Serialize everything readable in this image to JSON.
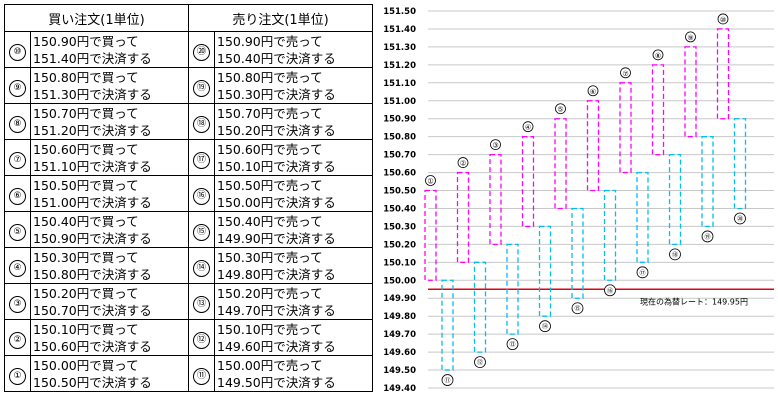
{
  "table": {
    "buy_header": "買い注文(1単位)",
    "sell_header": "売り注文(1単位)",
    "rows": [
      {
        "buy_mark": "⑩",
        "buy_line1": "150.90円で買って",
        "buy_line2": "151.40円で決済する",
        "sell_mark": "⑳",
        "sell_line1": "150.90円で売って",
        "sell_line2": "150.40円で決済する"
      },
      {
        "buy_mark": "⑨",
        "buy_line1": "150.80円で買って",
        "buy_line2": "151.30円で決済する",
        "sell_mark": "⑲",
        "sell_line1": "150.80円で売って",
        "sell_line2": "150.30円で決済する"
      },
      {
        "buy_mark": "⑧",
        "buy_line1": "150.70円で買って",
        "buy_line2": "151.20円で決済する",
        "sell_mark": "⑱",
        "sell_line1": "150.70円で売って",
        "sell_line2": "150.20円で決済する"
      },
      {
        "buy_mark": "⑦",
        "buy_line1": "150.60円で買って",
        "buy_line2": "151.10円で決済する",
        "sell_mark": "⑰",
        "sell_line1": "150.60円で売って",
        "sell_line2": "150.10円で決済する"
      },
      {
        "buy_mark": "⑥",
        "buy_line1": "150.50円で買って",
        "buy_line2": "151.00円で決済する",
        "sell_mark": "⑯",
        "sell_line1": "150.50円で売って",
        "sell_line2": "150.00円で決済する"
      },
      {
        "buy_mark": "⑤",
        "buy_line1": "150.40円で買って",
        "buy_line2": "150.90円で決済する",
        "sell_mark": "⑮",
        "sell_line1": "150.40円で売って",
        "sell_line2": "149.90円で決済する"
      },
      {
        "buy_mark": "④",
        "buy_line1": "150.30円で買って",
        "buy_line2": "150.80円で決済する",
        "sell_mark": "⑭",
        "sell_line1": "150.30円で売って",
        "sell_line2": "149.80円で決済する"
      },
      {
        "buy_mark": "③",
        "buy_line1": "150.20円で買って",
        "buy_line2": "150.70円で決済する",
        "sell_mark": "⑬",
        "sell_line1": "150.20円で売って",
        "sell_line2": "149.70円で決済する"
      },
      {
        "buy_mark": "②",
        "buy_line1": "150.10円で買って",
        "buy_line2": "150.60円で決済する",
        "sell_mark": "⑫",
        "sell_line1": "150.10円で売って",
        "sell_line2": "149.60円で決済する"
      },
      {
        "buy_mark": "①",
        "buy_line1": "150.00円で買って",
        "buy_line2": "150.50円で決済する",
        "sell_mark": "⑪",
        "sell_line1": "150.00円で売って",
        "sell_line2": "149.50円で決済する"
      }
    ]
  },
  "chart_data": {
    "type": "floating-bar",
    "ylim": [
      149.4,
      151.5
    ],
    "y_ticks": [
      "151.50",
      "151.40",
      "151.30",
      "151.20",
      "151.10",
      "151.00",
      "150.90",
      "150.80",
      "150.70",
      "150.60",
      "150.50",
      "150.40",
      "150.30",
      "150.20",
      "150.10",
      "150.00",
      "149.90",
      "149.80",
      "149.70",
      "149.60",
      "149.50",
      "149.40"
    ],
    "grid": true,
    "buy_orders": [
      {
        "label": "①",
        "entry": 150.0,
        "exit": 150.5
      },
      {
        "label": "②",
        "entry": 150.1,
        "exit": 150.6
      },
      {
        "label": "③",
        "entry": 150.2,
        "exit": 150.7
      },
      {
        "label": "④",
        "entry": 150.3,
        "exit": 150.8
      },
      {
        "label": "⑤",
        "entry": 150.4,
        "exit": 150.9
      },
      {
        "label": "⑥",
        "entry": 150.5,
        "exit": 151.0
      },
      {
        "label": "⑦",
        "entry": 150.6,
        "exit": 151.1
      },
      {
        "label": "⑧",
        "entry": 150.7,
        "exit": 151.2
      },
      {
        "label": "⑨",
        "entry": 150.8,
        "exit": 151.3
      },
      {
        "label": "⑩",
        "entry": 150.9,
        "exit": 151.4
      }
    ],
    "sell_orders": [
      {
        "label": "⑪",
        "entry": 150.0,
        "exit": 149.5
      },
      {
        "label": "⑫",
        "entry": 150.1,
        "exit": 149.6
      },
      {
        "label": "⑬",
        "entry": 150.2,
        "exit": 149.7
      },
      {
        "label": "⑭",
        "entry": 150.3,
        "exit": 149.8
      },
      {
        "label": "⑮",
        "entry": 150.4,
        "exit": 149.9
      },
      {
        "label": "⑯",
        "entry": 150.5,
        "exit": 150.0
      },
      {
        "label": "⑰",
        "entry": 150.6,
        "exit": 150.1
      },
      {
        "label": "⑱",
        "entry": 150.7,
        "exit": 150.2
      },
      {
        "label": "⑲",
        "entry": 150.8,
        "exit": 150.3
      },
      {
        "label": "⑳",
        "entry": 150.9,
        "exit": 150.4
      }
    ],
    "current_rate": {
      "value": 149.95,
      "label": "現在の為替レート：149.95円"
    },
    "colors": {
      "buy": "#ff00ff",
      "sell": "#00c0f0",
      "current_rate": "#e60012",
      "grid": "#c8c8c8"
    }
  }
}
